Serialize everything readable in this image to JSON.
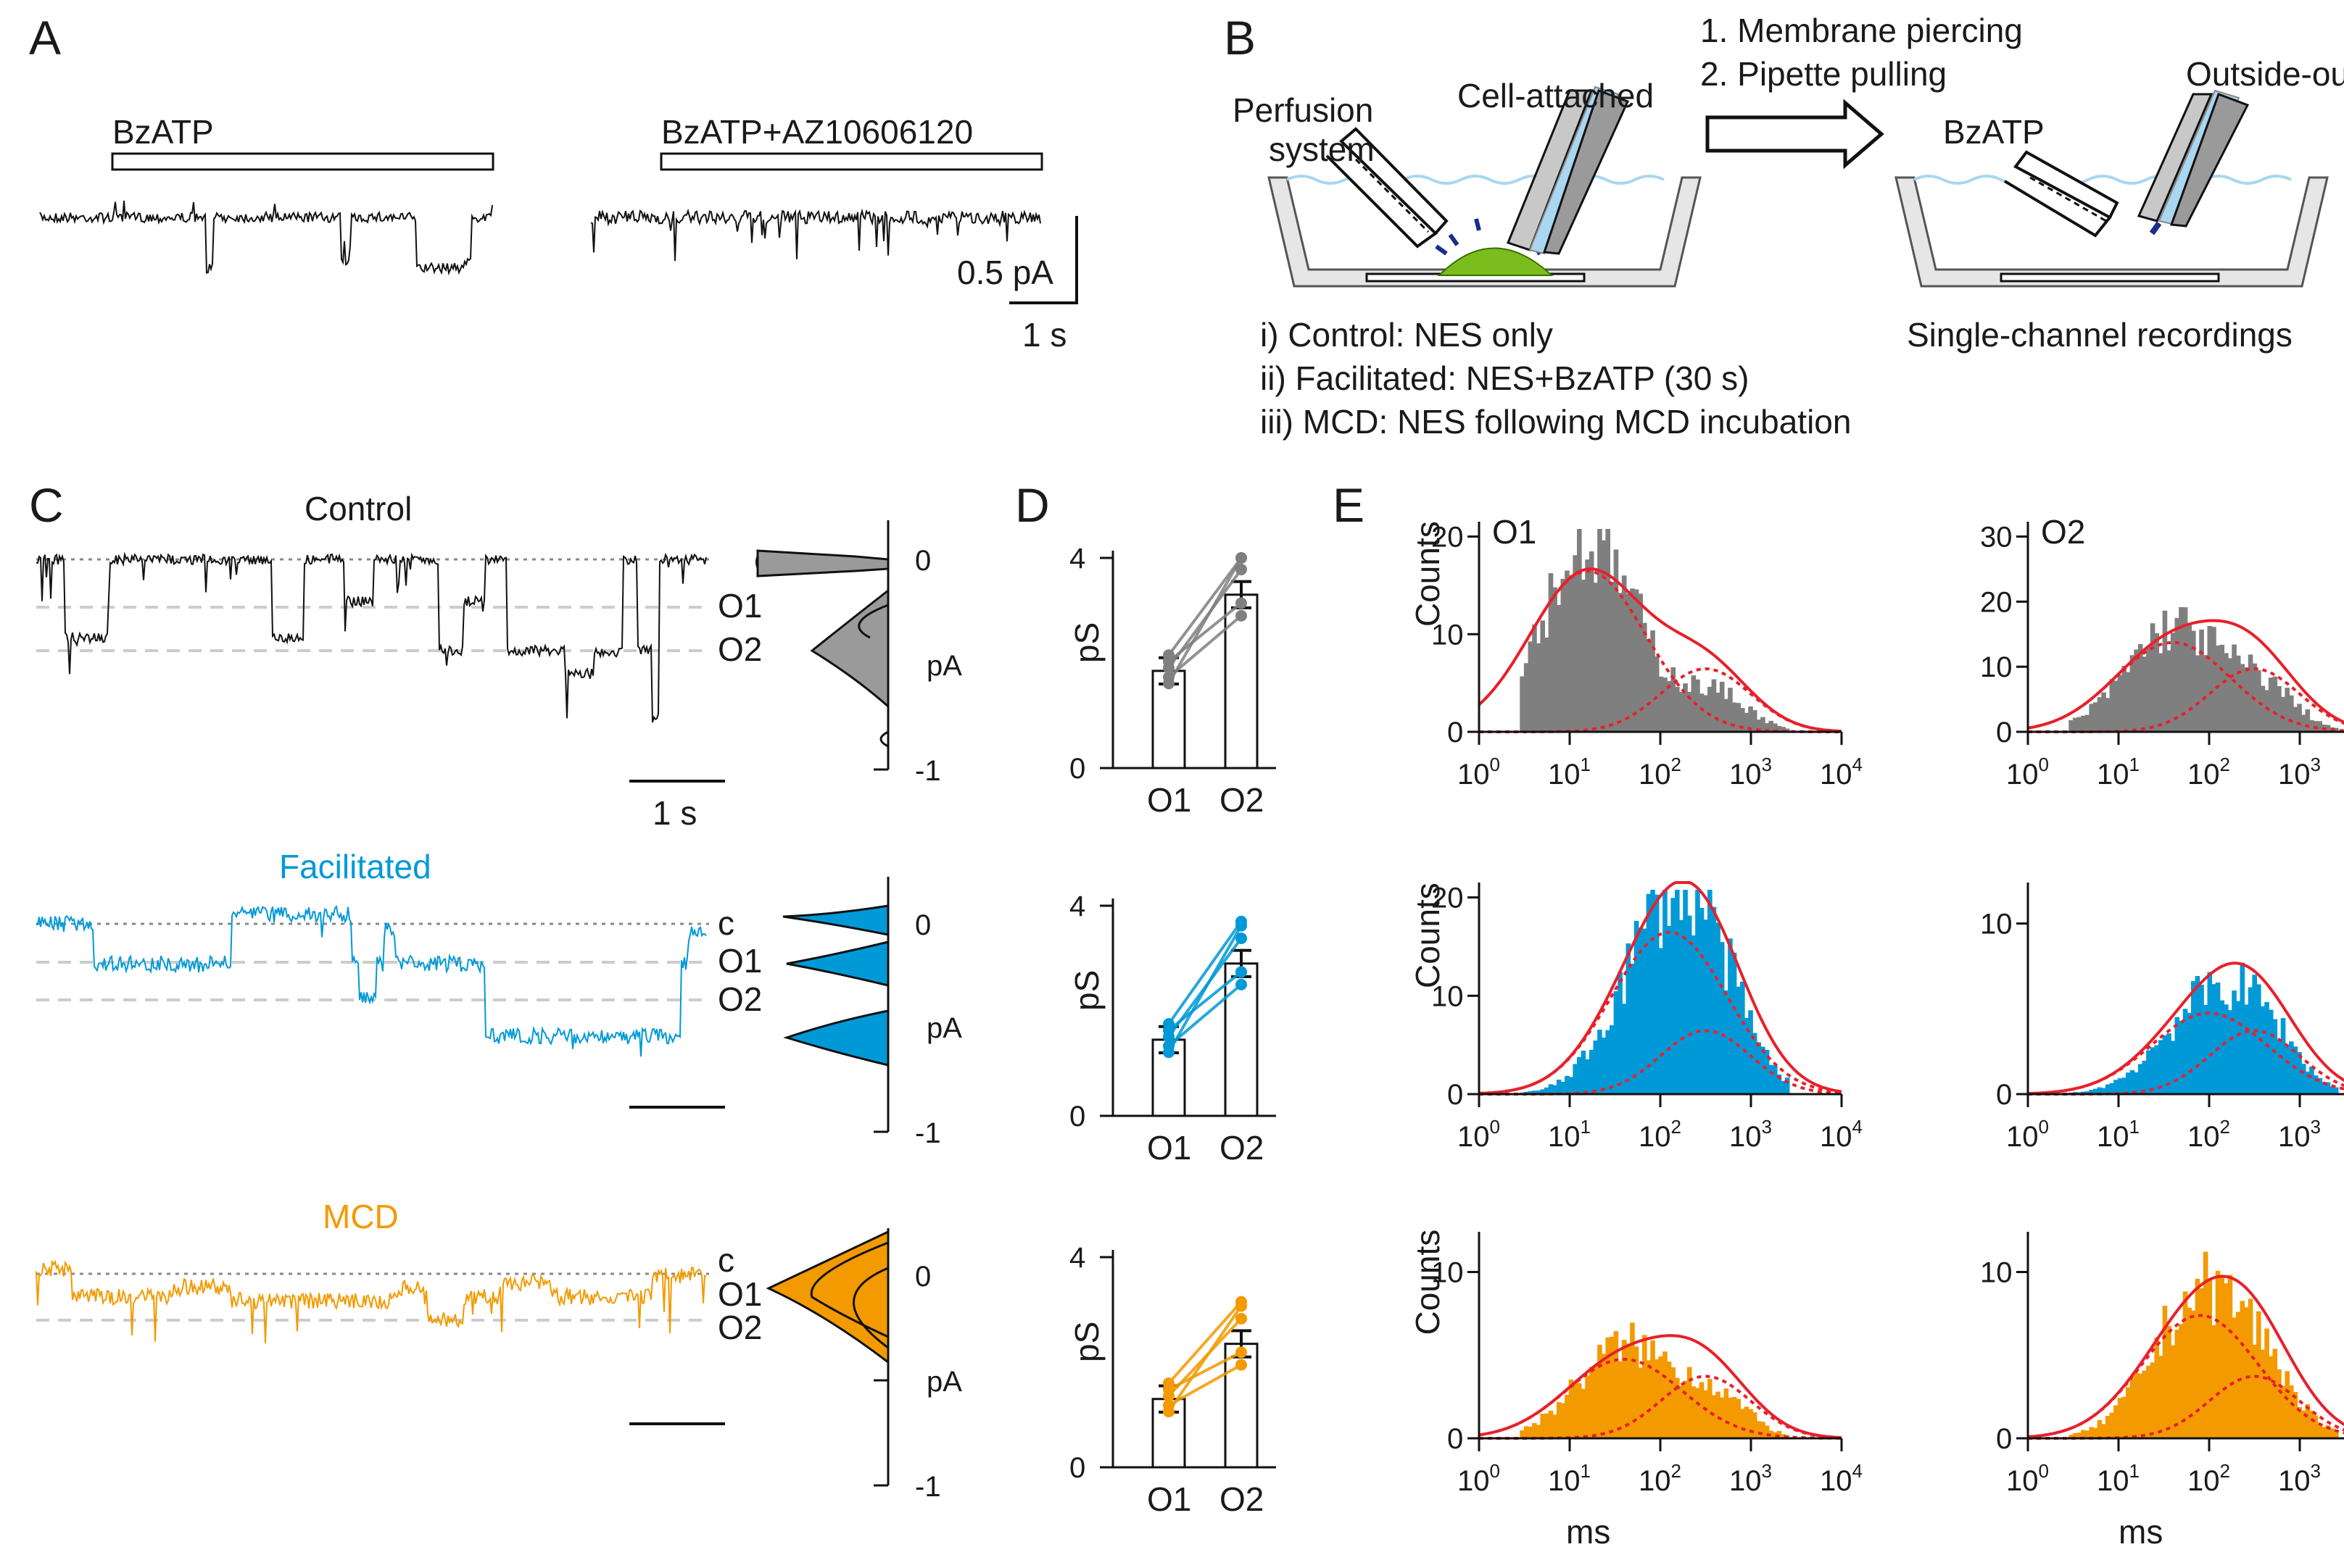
{
  "panels": {
    "A": "A",
    "B": "B",
    "C": "C",
    "D": "D",
    "E": "E"
  },
  "colors": {
    "control": "#7f7f7f",
    "facilitated": "#0099d8",
    "mcd": "#f39a00",
    "fit": "#e8202a",
    "trace_black": "#111111"
  },
  "panelA": {
    "bar1_label": "BzATP",
    "bar2_label": "BzATP+AZ10606120",
    "scale_y": "0.5 pA",
    "scale_x": "1 s"
  },
  "panelB": {
    "perfusion_label_1": "Perfusion",
    "perfusion_label_2": "system",
    "cell_attached": "Cell-attached",
    "step1": "1. Membrane piercing",
    "step2": "2. Pipette pulling",
    "outside_out": "Outside-out",
    "bzatp": "BzATP",
    "cond_i": "i) Control: NES only",
    "cond_ii": "ii) Facilitated: NES+BzATP (30 s)",
    "cond_iii": "iii) MCD: NES following MCD incubation",
    "single_channel": "Single-channel recordings"
  },
  "panelC": {
    "titles": [
      "Control",
      "Facilitated",
      "MCD"
    ],
    "levels": [
      "c",
      "O1",
      "O2"
    ],
    "yticks": [
      "0",
      "pA",
      "-1"
    ],
    "scale_x": "1 s"
  },
  "panelD": {
    "ylabel": "pS",
    "yticks": [
      "0",
      "4"
    ],
    "xticks": [
      "O1",
      "O2"
    ],
    "bars": [
      {
        "condition": "Control",
        "O1": 1.85,
        "O2": 3.3
      },
      {
        "condition": "Facilitated",
        "O1": 1.45,
        "O2": 2.9
      },
      {
        "condition": "MCD",
        "O1": 1.3,
        "O2": 2.35
      }
    ]
  },
  "panelE": {
    "ylabel": "Counts",
    "xlabel": "ms",
    "xtick_base": "10",
    "xtick_exps": [
      "0",
      "1",
      "2",
      "3",
      "4"
    ],
    "titles": [
      "O1",
      "O2"
    ],
    "row_yticks": [
      [
        [
          "0",
          "10",
          "20"
        ],
        [
          "0",
          "10",
          "20",
          "30"
        ]
      ],
      [
        [
          "0",
          "10",
          "20"
        ],
        [
          "0",
          "10"
        ]
      ],
      [
        [
          "0",
          "10"
        ],
        [
          "0",
          "10"
        ]
      ]
    ]
  },
  "chart_data": [
    {
      "type": "bar",
      "title": "D Control",
      "ylabel": "pS",
      "categories": [
        "O1",
        "O2"
      ],
      "values": [
        1.85,
        3.3
      ],
      "ylim": [
        0,
        4
      ]
    },
    {
      "type": "bar",
      "title": "D Facilitated",
      "ylabel": "pS",
      "categories": [
        "O1",
        "O2"
      ],
      "values": [
        1.45,
        2.9
      ],
      "ylim": [
        0,
        4
      ]
    },
    {
      "type": "bar",
      "title": "D MCD",
      "ylabel": "pS",
      "categories": [
        "O1",
        "O2"
      ],
      "values": [
        1.3,
        2.35
      ],
      "ylim": [
        0,
        4
      ]
    }
  ]
}
